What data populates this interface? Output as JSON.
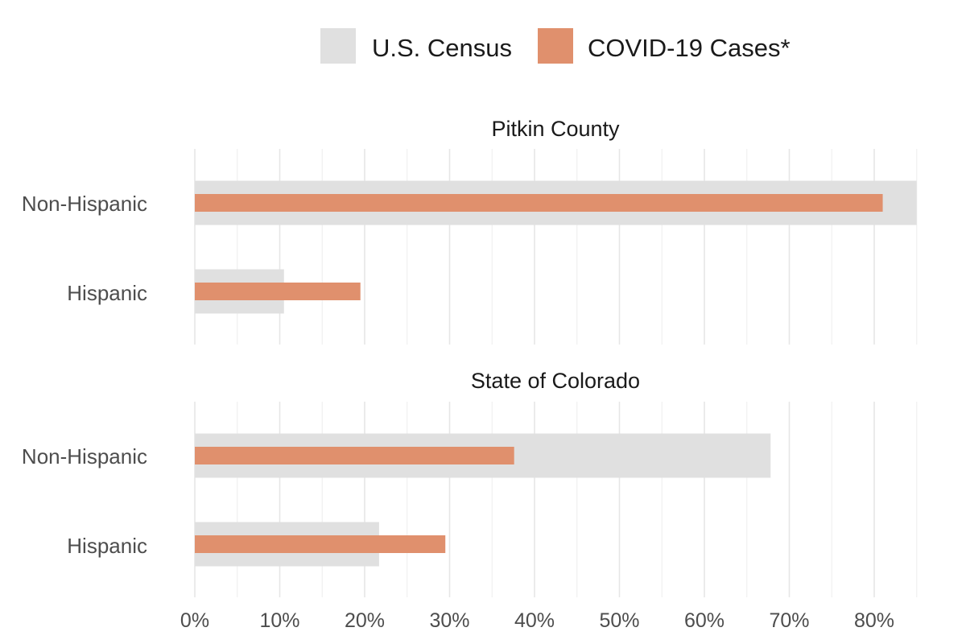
{
  "chart_data": {
    "type": "bar",
    "orientation": "horizontal",
    "legend": {
      "placement": "top",
      "items": [
        {
          "label": "U.S. Census",
          "color": "#e0e0e0"
        },
        {
          "label": "COVID-19 Cases*",
          "color": "#e0906d"
        }
      ]
    },
    "xlim": [
      0,
      85
    ],
    "x_ticks": [
      0,
      10,
      20,
      30,
      40,
      50,
      60,
      70,
      80
    ],
    "x_tick_labels": [
      "0%",
      "10%",
      "20%",
      "30%",
      "40%",
      "50%",
      "60%",
      "70%",
      "80%"
    ],
    "grid": true,
    "categories": [
      "Non-Hispanic",
      "Hispanic"
    ],
    "panels": [
      {
        "title": "Pitkin County",
        "series": [
          {
            "name": "U.S. Census",
            "values": [
              85,
              10.5
            ]
          },
          {
            "name": "COVID-19 Cases*",
            "values": [
              81,
              19.5
            ]
          }
        ]
      },
      {
        "title": "State of Colorado",
        "series": [
          {
            "name": "U.S. Census",
            "values": [
              67.8,
              21.7
            ]
          },
          {
            "name": "COVID-19 Cases*",
            "values": [
              37.6,
              29.5
            ]
          }
        ]
      }
    ]
  }
}
